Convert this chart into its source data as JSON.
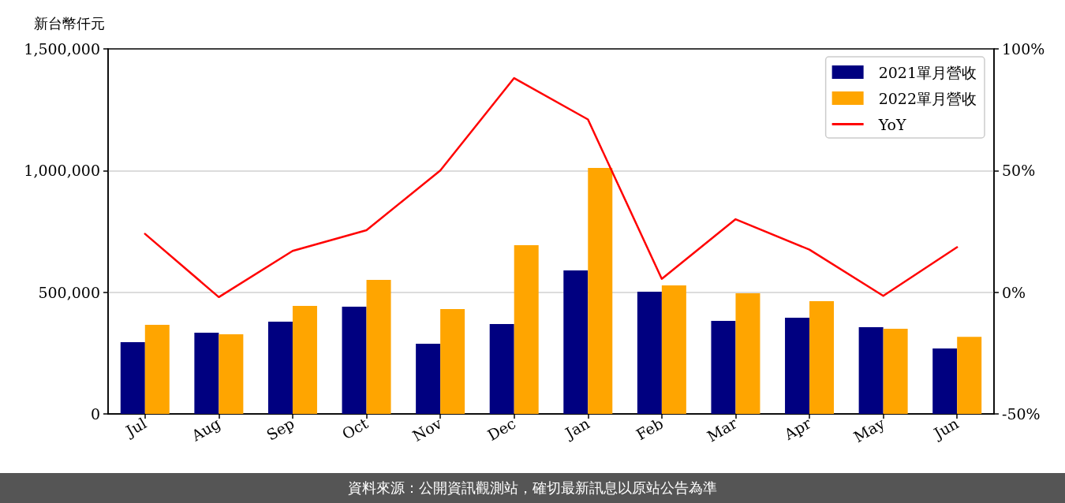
{
  "chart_data": {
    "type": "bar",
    "ylabel": "新台幣仟元",
    "categories": [
      "Jul",
      "Aug",
      "Sep",
      "Oct",
      "Nov",
      "Dec",
      "Jan",
      "Feb",
      "Mar",
      "Apr",
      "May",
      "Jun"
    ],
    "series": [
      {
        "name": "2021單月營收",
        "color": "#000080",
        "values": [
          295000,
          334000,
          379000,
          441000,
          288000,
          369000,
          590000,
          502000,
          382000,
          395000,
          356000,
          269000
        ]
      },
      {
        "name": "2022單月營收",
        "color": "#ffa500",
        "values": [
          366000,
          327000,
          444000,
          551000,
          431000,
          693000,
          1011000,
          528000,
          496000,
          463000,
          350000,
          317000
        ]
      },
      {
        "name": "YoY",
        "type": "line",
        "axis": "y2",
        "color": "#ff0000",
        "values": [
          24,
          -2,
          17,
          25.5,
          50,
          88,
          71,
          5.5,
          30,
          17.5,
          -1.5,
          18.5
        ]
      }
    ],
    "ylim": [
      0,
      1500000
    ],
    "yticks": [
      0,
      {
        "value": 500000,
        "label": "500,000"
      },
      {
        "value": 1000000,
        "label": "1,000,000"
      },
      {
        "value": 1500000,
        "label": "1,500,000"
      }
    ],
    "y2lim": [
      -50,
      100
    ],
    "y2ticks": [
      {
        "value": -50,
        "label": "-50%"
      },
      {
        "value": 0,
        "label": "0%"
      },
      {
        "value": 50,
        "label": "50%"
      },
      {
        "value": 100,
        "label": "100%"
      }
    ],
    "grid": "y",
    "legend": "top right",
    "marker": "none",
    "line_style": "solid",
    "annotations": [
      "資料來源：公開資訊觀測站，確切最新訊息以原站公告為準"
    ]
  }
}
